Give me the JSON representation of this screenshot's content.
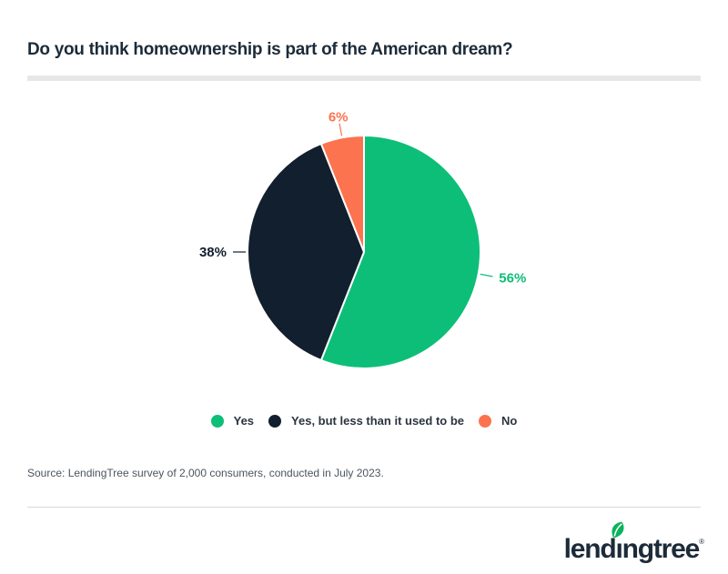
{
  "header": {
    "title": "Do you think homeownership is part of the American dream?"
  },
  "chart_data": {
    "type": "pie",
    "title": "Do you think homeownership is part of the American dream?",
    "slices": [
      {
        "label": "Yes",
        "value": 56,
        "display": "56%",
        "color": "#0DBE78"
      },
      {
        "label": "Yes, but less than it used to be",
        "value": 38,
        "display": "38%",
        "color": "#121F2E"
      },
      {
        "label": "No",
        "value": 6,
        "display": "6%",
        "color": "#FC734F"
      }
    ],
    "start_at": "12-oclock",
    "direction": "clockwise",
    "value_labels": "outside-with-leader-lines",
    "legend_position": "bottom",
    "slice_gap_color": "#FFFFFF"
  },
  "source": {
    "text": "Source: LendingTree survey of 2,000 consumers, conducted in July 2023."
  },
  "footer": {
    "logo_text_left": "lend",
    "logo_text_i": "ı",
    "logo_text_right": "ngtree",
    "registered_mark": "®",
    "logo_color": "#1D2B39",
    "leaf_color": "#0CB35C"
  },
  "colors": {
    "background": "#FFFFFF",
    "title_text": "#1C2B39",
    "legend_text": "#2B3440",
    "source_text": "#4B545E",
    "divider_thick": "#E7E7E7",
    "divider_thin": "#D9D9D9"
  }
}
